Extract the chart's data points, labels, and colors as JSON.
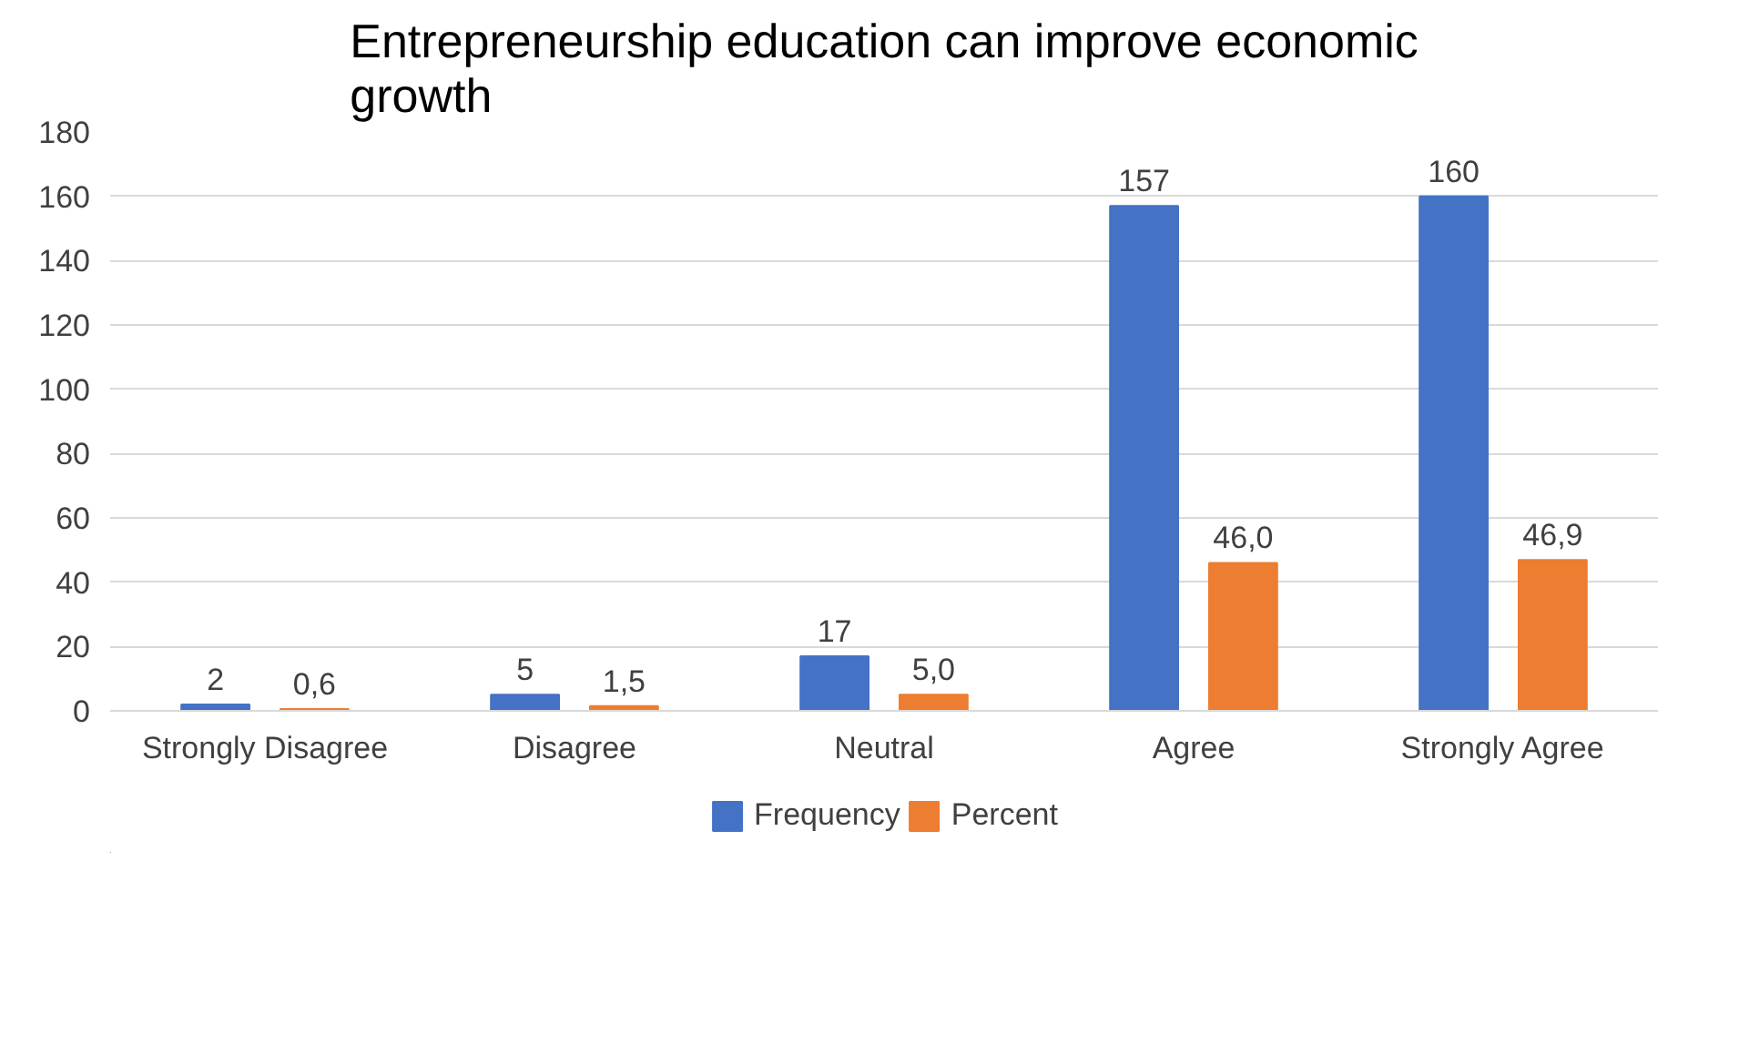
{
  "chart_data": {
    "type": "bar",
    "title": "Entrepreneurship education can improve economic growth",
    "categories": [
      "Strongly Disagree",
      "Disagree",
      "Neutral",
      "Agree",
      "Strongly Agree"
    ],
    "series": [
      {
        "name": "Frequency",
        "color": "#4472c4",
        "values": [
          2,
          5,
          17,
          157,
          160
        ],
        "value_labels": [
          "2",
          "5",
          "17",
          "157",
          "160"
        ]
      },
      {
        "name": "Percent",
        "color": "#ed7d31",
        "values": [
          0.6,
          1.5,
          5.0,
          46.0,
          46.9
        ],
        "value_labels": [
          "0,6",
          "1,5",
          "5,0",
          "46,0",
          "46,9"
        ]
      }
    ],
    "ylim": [
      0,
      180
    ],
    "yticks": [
      0,
      20,
      40,
      60,
      80,
      100,
      120,
      140,
      160,
      180
    ],
    "grid": "y",
    "legend": "bottom"
  }
}
